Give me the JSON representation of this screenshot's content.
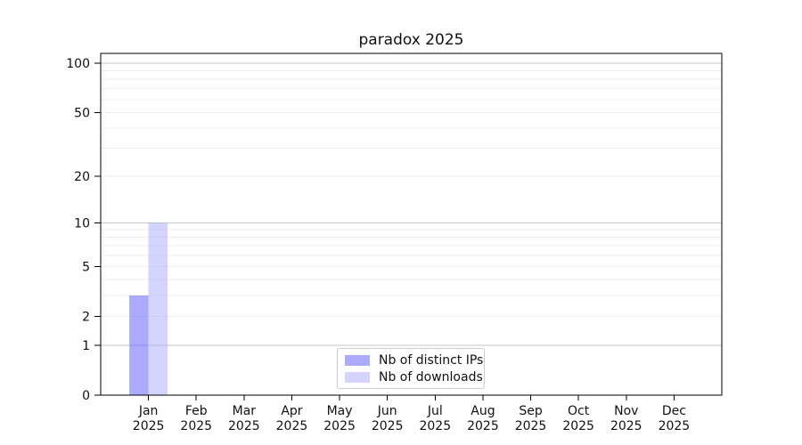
{
  "page": {
    "background": "#ffffff"
  },
  "chart_data": {
    "type": "bar",
    "title": "paradox 2025",
    "months": [
      "Jan",
      "Feb",
      "Mar",
      "Apr",
      "May",
      "Jun",
      "Jul",
      "Aug",
      "Sep",
      "Oct",
      "Nov",
      "Dec"
    ],
    "year": "2025",
    "series": [
      {
        "name": "Nb of distinct IPs",
        "color": "#5555ff",
        "alpha": 0.5,
        "values": [
          3,
          0,
          0,
          0,
          0,
          0,
          0,
          0,
          0,
          0,
          0,
          0
        ]
      },
      {
        "name": "Nb of downloads",
        "color": "#aaaaff",
        "alpha": 0.5,
        "values": [
          10,
          0,
          0,
          0,
          0,
          0,
          0,
          0,
          0,
          0,
          0,
          0
        ]
      }
    ],
    "yscale": "log1p",
    "ylim": [
      0,
      115
    ],
    "yticks": [
      0,
      1,
      2,
      5,
      10,
      20,
      50,
      100
    ],
    "grid_major": [
      1,
      10,
      100
    ],
    "grid_minor": [
      2,
      3,
      4,
      5,
      6,
      7,
      8,
      9,
      20,
      30,
      40,
      50,
      60,
      70,
      80,
      90
    ],
    "grid_major_color": "#c6c6c6",
    "grid_minor_color": "#ededed",
    "axis_color": "#000000",
    "legend_position": "bottom-center"
  }
}
